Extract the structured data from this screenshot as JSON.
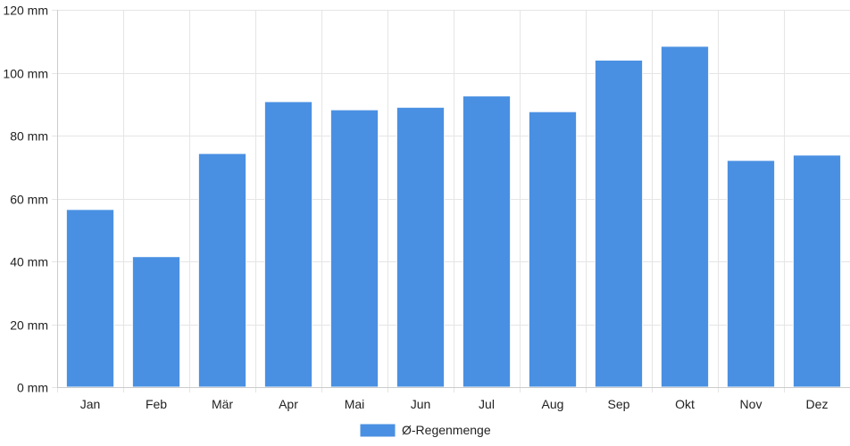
{
  "chart_data": {
    "type": "bar",
    "categories": [
      "Jan",
      "Feb",
      "Mär",
      "Apr",
      "Mai",
      "Jun",
      "Jul",
      "Aug",
      "Sep",
      "Okt",
      "Nov",
      "Dez"
    ],
    "series": [
      {
        "name": "Ø-Regenmenge",
        "values": [
          56.5,
          41.5,
          74.3,
          90.8,
          88.2,
          89.0,
          92.6,
          87.6,
          104.0,
          108.4,
          72.1,
          73.8
        ]
      }
    ],
    "ylim": [
      0,
      120
    ],
    "yticks": [
      0,
      20,
      40,
      60,
      80,
      100,
      120
    ],
    "ytick_labels": [
      "0 mm",
      "20 mm",
      "40 mm",
      "60 mm",
      "80 mm",
      "100 mm",
      "120 mm"
    ],
    "grid": true,
    "legend_position": "bottom-center",
    "colors": {
      "bar": "#4a90e2",
      "bar_border": "#ffffff",
      "grid": "#e5e5e5",
      "axis": "#cccccc",
      "text": "#222222"
    }
  }
}
